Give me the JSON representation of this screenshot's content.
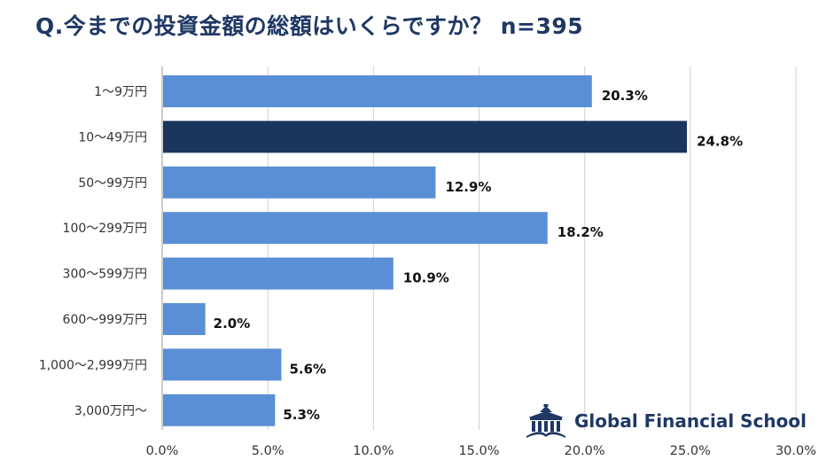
{
  "title": "Q.今までの投資金額の総額はいくらですか？ n=395",
  "logo": {
    "text": "Global Financial School",
    "icon": "school-building-icon"
  },
  "colors": {
    "bar": "#5a8fd6",
    "highlight_bar": "#1b365d",
    "grid": "#d0d0d0",
    "title": "#1f3864"
  },
  "chart_data": {
    "type": "bar",
    "orientation": "horizontal",
    "categories": [
      "1～9万円",
      "10～49万円",
      "50～99万円",
      "100～299万円",
      "300～599万円",
      "600～999万円",
      "1,000～2,999万円",
      "3,000万円～"
    ],
    "values": [
      20.3,
      24.8,
      12.9,
      18.2,
      10.9,
      2.0,
      5.6,
      5.3
    ],
    "data_labels": [
      "20.3%",
      "24.8%",
      "12.9%",
      "18.2%",
      "10.9%",
      "2.0%",
      "5.6%",
      "5.3%"
    ],
    "highlight_index": 1,
    "xlim": [
      0,
      30
    ],
    "xticks": [
      0,
      5,
      10,
      15,
      20,
      25,
      30
    ],
    "xtick_labels": [
      "0.0%",
      "5.0%",
      "10.0%",
      "15.0%",
      "20.0%",
      "25.0%",
      "30.0%"
    ],
    "grid": true
  }
}
